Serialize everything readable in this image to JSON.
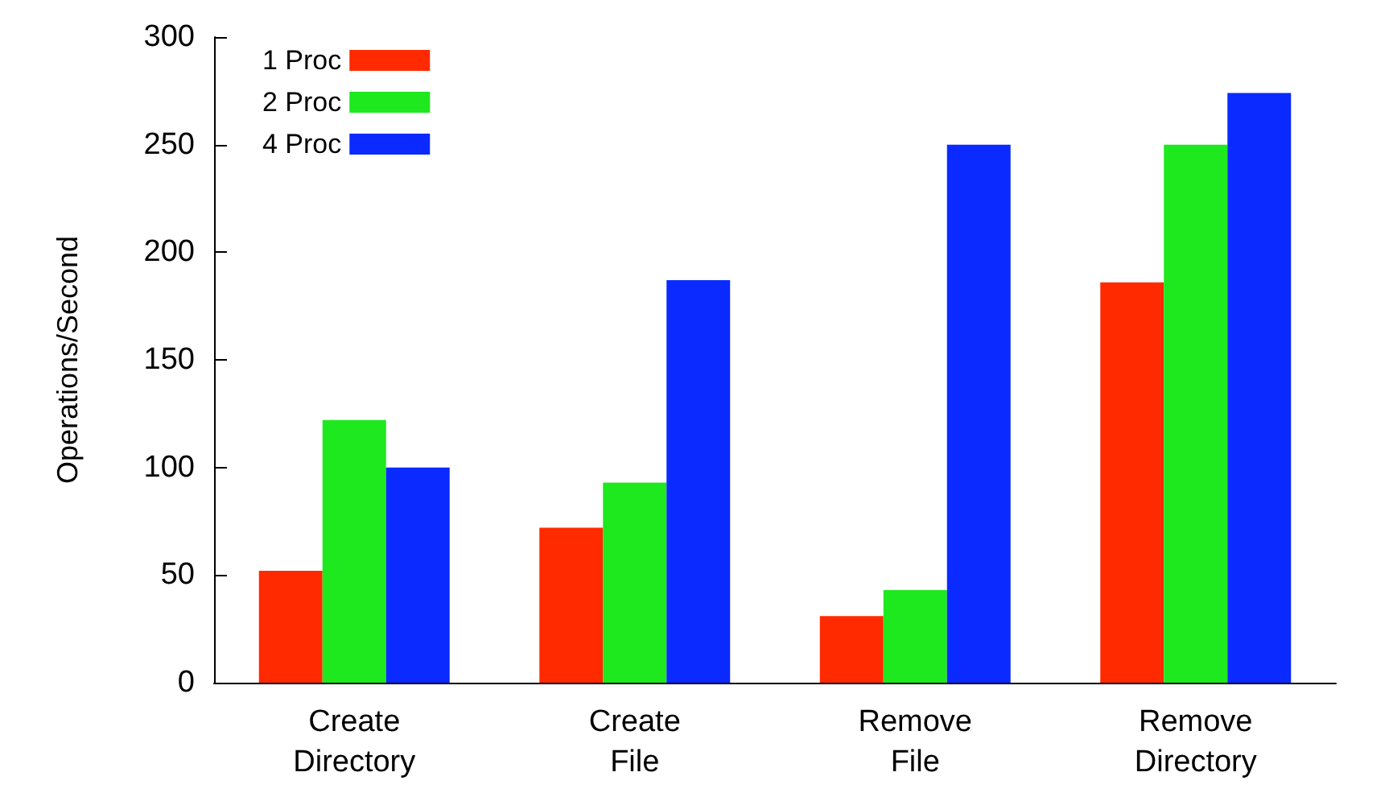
{
  "chart_data": {
    "type": "bar",
    "ylabel": "Operations/Second",
    "categories": [
      "Create\nDirectory",
      "Create\nFile",
      "Remove\nFile",
      "Remove\nDirectory"
    ],
    "series": [
      {
        "name": "1 Proc",
        "color": "#ff2a00",
        "values": [
          52,
          72,
          31,
          186
        ]
      },
      {
        "name": "2 Proc",
        "color": "#1ee81e",
        "values": [
          122,
          93,
          43,
          250
        ]
      },
      {
        "name": "4 Proc",
        "color": "#0a2aff",
        "values": [
          100,
          187,
          250,
          274
        ]
      }
    ],
    "ylim": [
      0,
      300
    ],
    "yticks": [
      0,
      50,
      100,
      150,
      200,
      250,
      300
    ],
    "grid": false,
    "legend": "top left"
  }
}
